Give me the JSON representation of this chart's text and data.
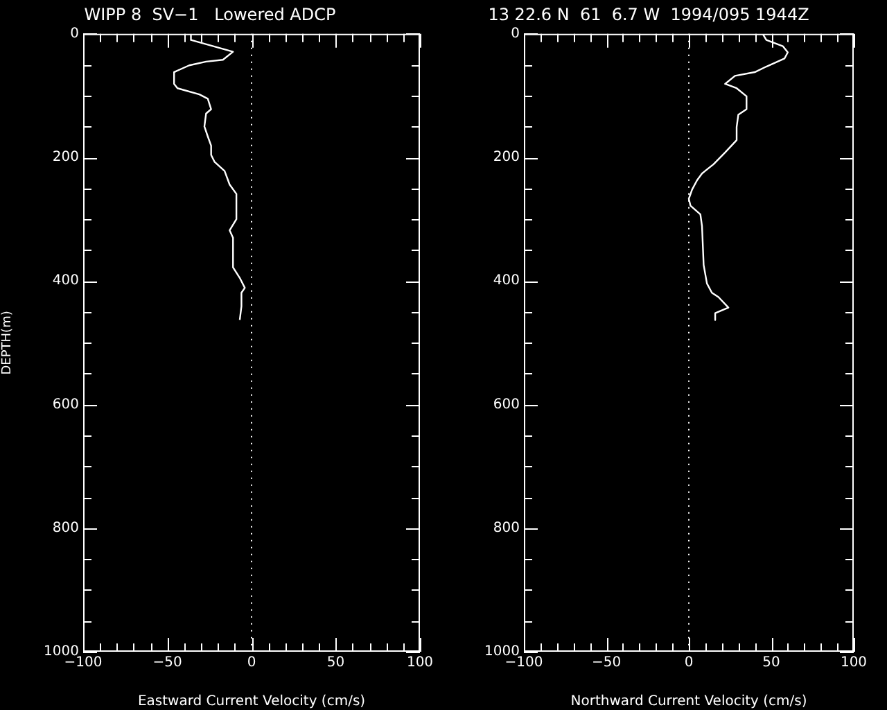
{
  "chart_data": [
    {
      "type": "line",
      "title": "WIPP 8  SV−1   Lowered ADCP",
      "xlabel": "Eastward Current Velocity (cm/s)",
      "ylabel": "DEPTH(m)",
      "series": [
        {
          "color": "#ffffff",
          "x": [
            -36,
            -36,
            -11,
            -17,
            -27,
            -37,
            -46,
            -46,
            -44,
            -31,
            -26,
            -24,
            -27,
            -28,
            -26,
            -24,
            -24,
            -22,
            -16,
            -13,
            -9,
            -9,
            -13,
            -11,
            -11,
            -7,
            -4,
            -6,
            -6,
            -7
          ],
          "values": [
            1,
            10,
            29,
            42,
            45,
            51,
            62,
            81,
            88,
            98,
            105,
            122,
            129,
            150,
            166,
            181,
            196,
            207,
            222,
            244,
            259,
            300,
            318,
            330,
            378,
            395,
            411,
            419,
            441,
            463
          ]
        }
      ],
      "xlim": [
        -100,
        100
      ],
      "ylim": [
        1000,
        0
      ],
      "xticks": [
        -100,
        {
          "value": -90,
          "label": null
        },
        {
          "value": -80,
          "label": null
        },
        {
          "value": -70,
          "label": null
        },
        {
          "value": -60,
          "label": null
        },
        -50,
        {
          "value": -40,
          "label": null
        },
        {
          "value": -30,
          "label": null
        },
        {
          "value": -20,
          "label": null
        },
        {
          "value": -10,
          "label": null
        },
        0,
        {
          "value": 10,
          "label": null
        },
        {
          "value": 20,
          "label": null
        },
        {
          "value": 30,
          "label": null
        },
        {
          "value": 40,
          "label": null
        },
        50,
        {
          "value": 60,
          "label": null
        },
        {
          "value": 70,
          "label": null
        },
        {
          "value": 80,
          "label": null
        },
        {
          "value": 90,
          "label": null
        },
        100
      ],
      "yticks": [
        0,
        {
          "value": 50,
          "label": null
        },
        {
          "value": 100,
          "label": null
        },
        {
          "value": 150,
          "label": null
        },
        200,
        {
          "value": 250,
          "label": null
        },
        {
          "value": 300,
          "label": null
        },
        {
          "value": 350,
          "label": null
        },
        400,
        {
          "value": 450,
          "label": null
        },
        {
          "value": 500,
          "label": null
        },
        {
          "value": 550,
          "label": null
        },
        600,
        {
          "value": 650,
          "label": null
        },
        {
          "value": 700,
          "label": null
        },
        {
          "value": 750,
          "label": null
        },
        800,
        {
          "value": 850,
          "label": null
        },
        {
          "value": 900,
          "label": null
        },
        {
          "value": 950,
          "label": null
        },
        1000
      ],
      "ref_lines": [
        {
          "axis": "x",
          "value": 0,
          "color": "#ffffff",
          "line_style": "dotted"
        }
      ],
      "grid": false,
      "legend": false,
      "marker": "none",
      "line_style": "solid"
    },
    {
      "type": "line",
      "title": "13 22.6 N  61  6.7 W  1994/095 1944Z",
      "xlabel": "Northward Current Velocity (cm/s)",
      "series": [
        {
          "color": "#ffffff",
          "x": [
            45,
            47,
            57,
            60,
            58,
            47,
            40,
            28,
            22,
            29,
            35,
            35,
            30,
            29,
            29,
            22,
            15,
            8,
            5,
            2,
            0,
            1,
            7,
            8,
            9,
            11,
            14,
            18,
            24,
            16,
            16
          ],
          "values": [
            1,
            10,
            20,
            30,
            40,
            53,
            62,
            68,
            81,
            88,
            101,
            122,
            131,
            151,
            172,
            192,
            211,
            226,
            237,
            252,
            267,
            278,
            292,
            311,
            374,
            404,
            419,
            426,
            443,
            452,
            463
          ]
        }
      ],
      "xlim": [
        -100,
        100
      ],
      "ylim": [
        1000,
        0
      ],
      "xticks": [
        -100,
        {
          "value": -90,
          "label": null
        },
        {
          "value": -80,
          "label": null
        },
        {
          "value": -70,
          "label": null
        },
        {
          "value": -60,
          "label": null
        },
        -50,
        {
          "value": -40,
          "label": null
        },
        {
          "value": -30,
          "label": null
        },
        {
          "value": -20,
          "label": null
        },
        {
          "value": -10,
          "label": null
        },
        0,
        {
          "value": 10,
          "label": null
        },
        {
          "value": 20,
          "label": null
        },
        {
          "value": 30,
          "label": null
        },
        {
          "value": 40,
          "label": null
        },
        50,
        {
          "value": 60,
          "label": null
        },
        {
          "value": 70,
          "label": null
        },
        {
          "value": 80,
          "label": null
        },
        {
          "value": 90,
          "label": null
        },
        100
      ],
      "yticks": [
        0,
        {
          "value": 50,
          "label": null
        },
        {
          "value": 100,
          "label": null
        },
        {
          "value": 150,
          "label": null
        },
        200,
        {
          "value": 250,
          "label": null
        },
        {
          "value": 300,
          "label": null
        },
        {
          "value": 350,
          "label": null
        },
        400,
        {
          "value": 450,
          "label": null
        },
        {
          "value": 500,
          "label": null
        },
        {
          "value": 550,
          "label": null
        },
        600,
        {
          "value": 650,
          "label": null
        },
        {
          "value": 700,
          "label": null
        },
        {
          "value": 750,
          "label": null
        },
        800,
        {
          "value": 850,
          "label": null
        },
        {
          "value": 900,
          "label": null
        },
        {
          "value": 950,
          "label": null
        },
        1000
      ],
      "ref_lines": [
        {
          "axis": "x",
          "value": 0,
          "color": "#ffffff",
          "line_style": "dotted"
        }
      ],
      "grid": false,
      "legend": false,
      "marker": "none",
      "line_style": "solid"
    }
  ]
}
